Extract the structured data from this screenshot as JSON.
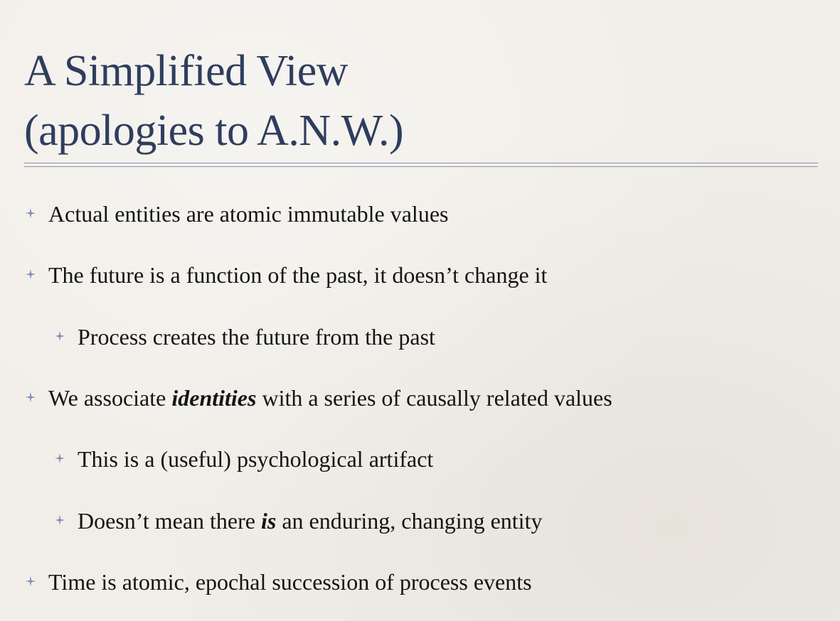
{
  "slide": {
    "title_line1": "A Simplified View",
    "title_line2": "(apologies to A.N.W.)",
    "accent_color": "#2f3d5e",
    "bullet_icon": "four-point-star-icon",
    "bullets": [
      {
        "level": 1,
        "text": "Actual entities are atomic immutable values"
      },
      {
        "level": 1,
        "text": "The future is a function of the past, it doesn’t change it"
      },
      {
        "level": 2,
        "text": "Process creates the future from the past"
      },
      {
        "level": 1,
        "pre": "We associate ",
        "em": "identities",
        "post": " with a series of causally related values"
      },
      {
        "level": 2,
        "text": "This is a (useful) psychological artifact"
      },
      {
        "level": 2,
        "pre": "Doesn’t mean there ",
        "em": "is",
        "post": " an enduring, changing entity"
      },
      {
        "level": 1,
        "text": "Time is atomic, epochal succession of process events"
      }
    ]
  }
}
